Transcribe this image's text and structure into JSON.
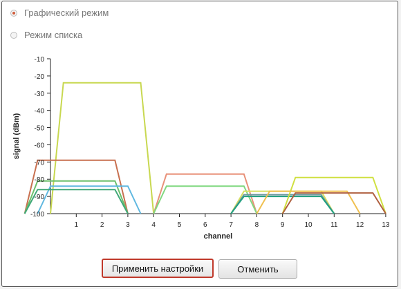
{
  "view_mode": {
    "graphic_label": "Графический режим",
    "list_label": "Режим списка",
    "selected": "graphic"
  },
  "buttons": {
    "apply_label": "Применить настройки",
    "cancel_label": "Отменить"
  },
  "colors": {
    "accent": "#c0392b"
  },
  "chart_data": {
    "type": "line",
    "title": "",
    "xlabel": "channel",
    "ylabel": "signal (dBm)",
    "xlim": [
      0,
      13
    ],
    "ylim": [
      -100,
      -10
    ],
    "x_ticks": [
      1,
      2,
      3,
      4,
      5,
      6,
      7,
      8,
      9,
      10,
      11,
      12,
      13
    ],
    "y_ticks": [
      -10,
      -20,
      -30,
      -40,
      -50,
      -60,
      -70,
      -80,
      -90,
      -100
    ],
    "grid": false,
    "series": [
      {
        "color": "#c8d850",
        "center": 2,
        "signal": -24
      },
      {
        "color": "#c87050",
        "center": 1,
        "signal": -69
      },
      {
        "color": "#6cc06c",
        "center": 1,
        "signal": -81
      },
      {
        "color": "#60b8e0",
        "center": 1.5,
        "signal": -84
      },
      {
        "color": "#40a878",
        "center": 1,
        "signal": -86
      },
      {
        "color": "#e89078",
        "center": 6,
        "signal": -77
      },
      {
        "color": "#80d880",
        "center": 6,
        "signal": -84
      },
      {
        "color": "#d8e060",
        "center": 9,
        "signal": -87
      },
      {
        "color": "#7098a0",
        "center": 9,
        "signal": -89
      },
      {
        "color": "#20a080",
        "center": 9,
        "signal": -90
      },
      {
        "color": "#d0e040",
        "center": 11,
        "signal": -79
      },
      {
        "color": "#f0c050",
        "center": 10,
        "signal": -87
      },
      {
        "color": "#b06040",
        "center": 11,
        "signal": -88
      }
    ]
  }
}
